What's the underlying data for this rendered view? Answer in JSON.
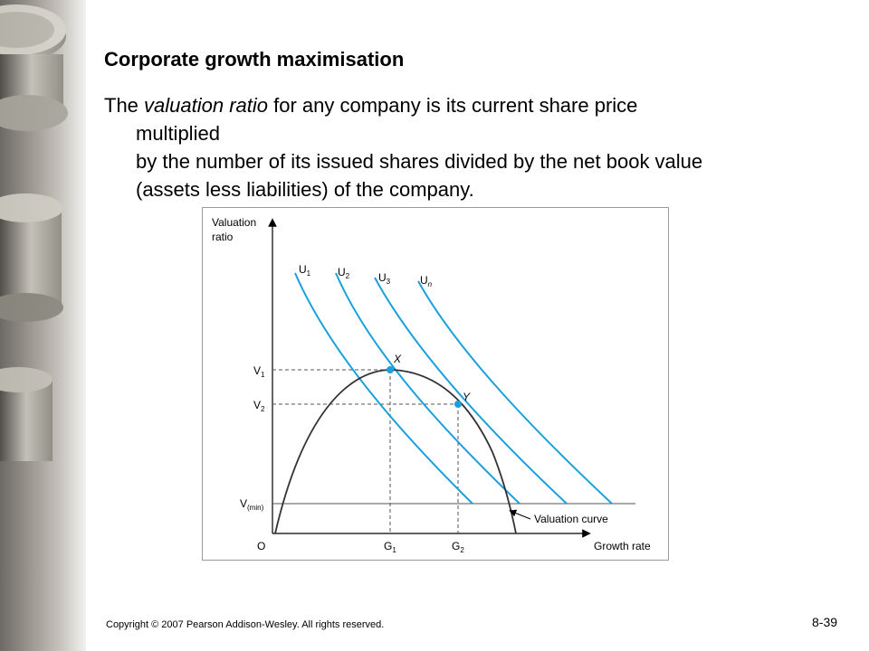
{
  "slide": {
    "title": "Corporate growth maximisation",
    "body_prefix": "The ",
    "body_term": "valuation ratio",
    "body_line1_rest": " for any company is its current share price",
    "body_line2": "multiplied",
    "body_line3": "by the number of its issued shares divided by the net book value",
    "body_line4": "(assets less liabilities) of the company.",
    "copyright": "Copyright © 2007 Pearson Addison-Wesley. All rights reserved.",
    "page_number": "8-39"
  },
  "decor": {
    "icon": "coin-stack-image"
  },
  "diagram": {
    "y_axis_label_line1": "Valuation",
    "y_axis_label_line2": "ratio",
    "x_axis_label": "Growth rate",
    "origin_label": "O",
    "y_ticks": {
      "v1": {
        "base": "V",
        "sub": "1"
      },
      "v2": {
        "base": "V",
        "sub": "2"
      },
      "vmin": {
        "base": "V",
        "sub": "(min)"
      }
    },
    "x_ticks": {
      "g1": {
        "base": "G",
        "sub": "1"
      },
      "g2": {
        "base": "G",
        "sub": "2"
      }
    },
    "curves": {
      "u1": {
        "base": "U",
        "sub": "1"
      },
      "u2": {
        "base": "U",
        "sub": "2"
      },
      "u3": {
        "base": "U",
        "sub": "3"
      },
      "un": {
        "base": "U",
        "sub": "n"
      }
    },
    "points": {
      "x": "X",
      "y": "Y"
    },
    "valuation_curve_label": "Valuation curve",
    "colors": {
      "indifference": "#1aa0dc",
      "curve": "#333333",
      "point": "#1aa0dc",
      "guide": "#555555"
    }
  }
}
